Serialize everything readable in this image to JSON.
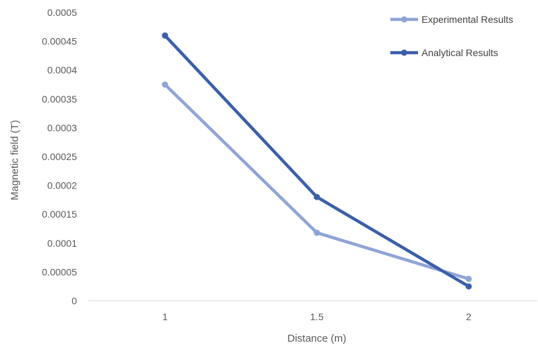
{
  "chart_data": {
    "type": "line",
    "title": "",
    "xlabel": "Distance (m)",
    "ylabel": "Magnetic field (T)",
    "categories": [
      "1",
      "1.5",
      "2"
    ],
    "x": [
      1,
      1.5,
      2
    ],
    "ylim": [
      0,
      0.0005
    ],
    "y_ticks": [
      "0",
      "0.00005",
      "0.0001",
      "0.00015",
      "0.0002",
      "0.00025",
      "0.0003",
      "0.00035",
      "0.0004",
      "0.00045",
      "0.0005"
    ],
    "y_tick_values": [
      0,
      5e-05,
      0.0001,
      0.00015,
      0.0002,
      0.00025,
      0.0003,
      0.00035,
      0.0004,
      0.00045,
      0.0005
    ],
    "grid": false,
    "legend_position": "top-right",
    "series": [
      {
        "name": "Experimental Results",
        "values": [
          0.000375,
          0.000118,
          3.8e-05
        ],
        "color": "#8FA4D6"
      },
      {
        "name": "Analytical Results",
        "values": [
          0.00046,
          0.00018,
          2.5e-05
        ],
        "color": "#3A5FA8"
      }
    ]
  }
}
